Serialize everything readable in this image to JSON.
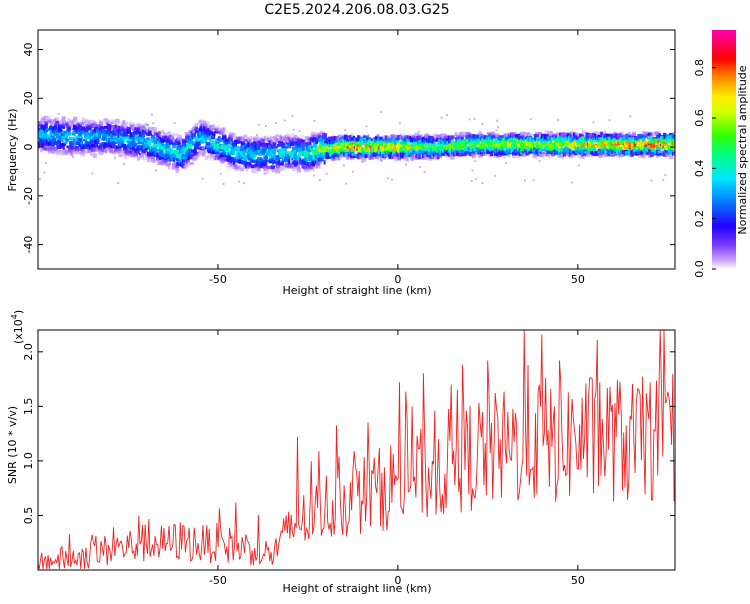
{
  "title": "C2E5.2024.206.08.03.G25",
  "colors": {
    "snr_line": "#ee2222",
    "axis": "#000000",
    "background": "#ffffff"
  },
  "chart_data": [
    {
      "type": "heatmap",
      "title": "C2E5.2024.206.08.03.G25",
      "xlabel": "Height of straight line (km)",
      "ylabel": "Frequency (Hz)",
      "xlim": [
        -100,
        77
      ],
      "ylim": [
        -50,
        48
      ],
      "xticks": [
        "-50",
        "0",
        "50"
      ],
      "xtick_values": [
        -50,
        0,
        50
      ],
      "yticks": [
        "-40",
        "-20",
        "0",
        "20",
        "40"
      ],
      "ytick_values": [
        -40,
        -20,
        0,
        20,
        40
      ],
      "colorbar": {
        "label": "Normalized spectral amplitude",
        "range": [
          0,
          0.95
        ],
        "ticks": [
          "0.0",
          "0.2",
          "0.4",
          "0.6",
          "0.8"
        ],
        "tick_values": [
          0,
          0.2,
          0.4,
          0.6,
          0.8
        ],
        "colormap": "rainbow (magenta high, red, yellow, green, cyan, blue, purple low)"
      },
      "ridge": {
        "x": [
          -100,
          -90,
          -80,
          -70,
          -60,
          -55,
          -50,
          -45,
          -40,
          -35,
          -30,
          -25,
          -22,
          -15,
          -10,
          0,
          10,
          20,
          30,
          40,
          50,
          60,
          70,
          77
        ],
        "frequency": [
          5,
          4,
          4,
          2,
          -3,
          4,
          1,
          -2,
          -3,
          -3,
          -2,
          -3,
          -1,
          0,
          0,
          0,
          0,
          1,
          1,
          1,
          1,
          1,
          1,
          1
        ],
        "amplitude": [
          0.35,
          0.4,
          0.35,
          0.4,
          0.45,
          0.4,
          0.45,
          0.45,
          0.4,
          0.4,
          0.45,
          0.45,
          0.6,
          0.8,
          0.85,
          0.75,
          0.6,
          0.65,
          0.7,
          0.7,
          0.75,
          0.8,
          0.85,
          0.85
        ]
      }
    },
    {
      "type": "line",
      "xlabel": "Height of straight line (km)",
      "ylabel": "SNR (10 * v/v)",
      "yscale_label": "(x10",
      "yscale_exp": "4",
      "yscale_close": ")",
      "xlim": [
        -100,
        77
      ],
      "ylim": [
        0,
        2.2
      ],
      "xticks": [
        "-50",
        "0",
        "50"
      ],
      "xtick_values": [
        -50,
        0,
        50
      ],
      "yticks": [
        "0.5",
        "1.0",
        "1.5",
        "2.0"
      ],
      "ytick_values": [
        0.5,
        1.0,
        1.5,
        2.0
      ],
      "series": [
        {
          "x": [
            -100,
            -95,
            -90,
            -85,
            -80,
            -75,
            -70,
            -65,
            -60,
            -55,
            -50,
            -45,
            -40,
            -35,
            -30,
            -25,
            -20,
            -15,
            -10,
            -5,
            0,
            5,
            10,
            15,
            20,
            25,
            30,
            35,
            40,
            45,
            50,
            55,
            60,
            65,
            70,
            75,
            77
          ],
          "values": [
            0.05,
            0.08,
            0.1,
            0.13,
            0.17,
            0.2,
            0.23,
            0.22,
            0.25,
            0.22,
            0.23,
            0.2,
            0.18,
            0.12,
            0.35,
            0.45,
            0.55,
            0.6,
            0.65,
            0.7,
            0.78,
            0.8,
            0.85,
            0.95,
            1.0,
            1.05,
            1.05,
            1.1,
            1.15,
            1.1,
            1.15,
            1.15,
            1.15,
            1.1,
            1.15,
            1.1,
            1.1
          ],
          "peaks": [
            {
              "x": -72,
              "value": 0.5
            },
            {
              "x": -45,
              "value": 0.62
            },
            {
              "x": -28,
              "value": 1.22
            },
            {
              "x": -8,
              "value": 0.93
            },
            {
              "x": 4,
              "value": 1.5
            },
            {
              "x": 18,
              "value": 1.88
            },
            {
              "x": 25,
              "value": 1.92
            },
            {
              "x": 36,
              "value": 1.88
            },
            {
              "x": 40,
              "value": 2.16
            },
            {
              "x": 45,
              "value": 1.92
            },
            {
              "x": 56,
              "value": 1.72
            },
            {
              "x": 70,
              "value": 1.72
            }
          ]
        }
      ]
    }
  ]
}
